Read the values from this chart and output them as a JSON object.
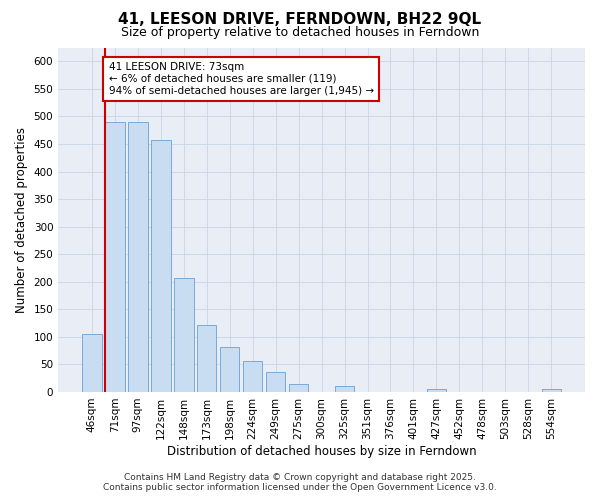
{
  "title": "41, LEESON DRIVE, FERNDOWN, BH22 9QL",
  "subtitle": "Size of property relative to detached houses in Ferndown",
  "xlabel": "Distribution of detached houses by size in Ferndown",
  "ylabel": "Number of detached properties",
  "footer": "Contains HM Land Registry data © Crown copyright and database right 2025.\nContains public sector information licensed under the Open Government Licence v3.0.",
  "categories": [
    "46sqm",
    "71sqm",
    "97sqm",
    "122sqm",
    "148sqm",
    "173sqm",
    "198sqm",
    "224sqm",
    "249sqm",
    "275sqm",
    "300sqm",
    "325sqm",
    "351sqm",
    "376sqm",
    "401sqm",
    "427sqm",
    "452sqm",
    "478sqm",
    "503sqm",
    "528sqm",
    "554sqm"
  ],
  "values": [
    105,
    490,
    490,
    458,
    207,
    122,
    82,
    57,
    37,
    15,
    0,
    10,
    0,
    0,
    0,
    5,
    0,
    0,
    0,
    0,
    6
  ],
  "bar_color": "#c9ddf2",
  "bar_edge_color": "#6b9fd4",
  "grid_color": "#c8d4e8",
  "background_color": "#e8edf6",
  "red_line_index": 1,
  "annotation_text": "41 LEESON DRIVE: 73sqm\n← 6% of detached houses are smaller (119)\n94% of semi-detached houses are larger (1,945) →",
  "annotation_box_color": "#ffffff",
  "annotation_border_color": "#cc0000",
  "ylim": [
    0,
    625
  ],
  "yticks": [
    0,
    50,
    100,
    150,
    200,
    250,
    300,
    350,
    400,
    450,
    500,
    550,
    600
  ],
  "title_fontsize": 11,
  "subtitle_fontsize": 9,
  "xlabel_fontsize": 8.5,
  "ylabel_fontsize": 8.5,
  "tick_fontsize": 7.5,
  "footer_fontsize": 6.5,
  "ann_fontsize": 7.5
}
